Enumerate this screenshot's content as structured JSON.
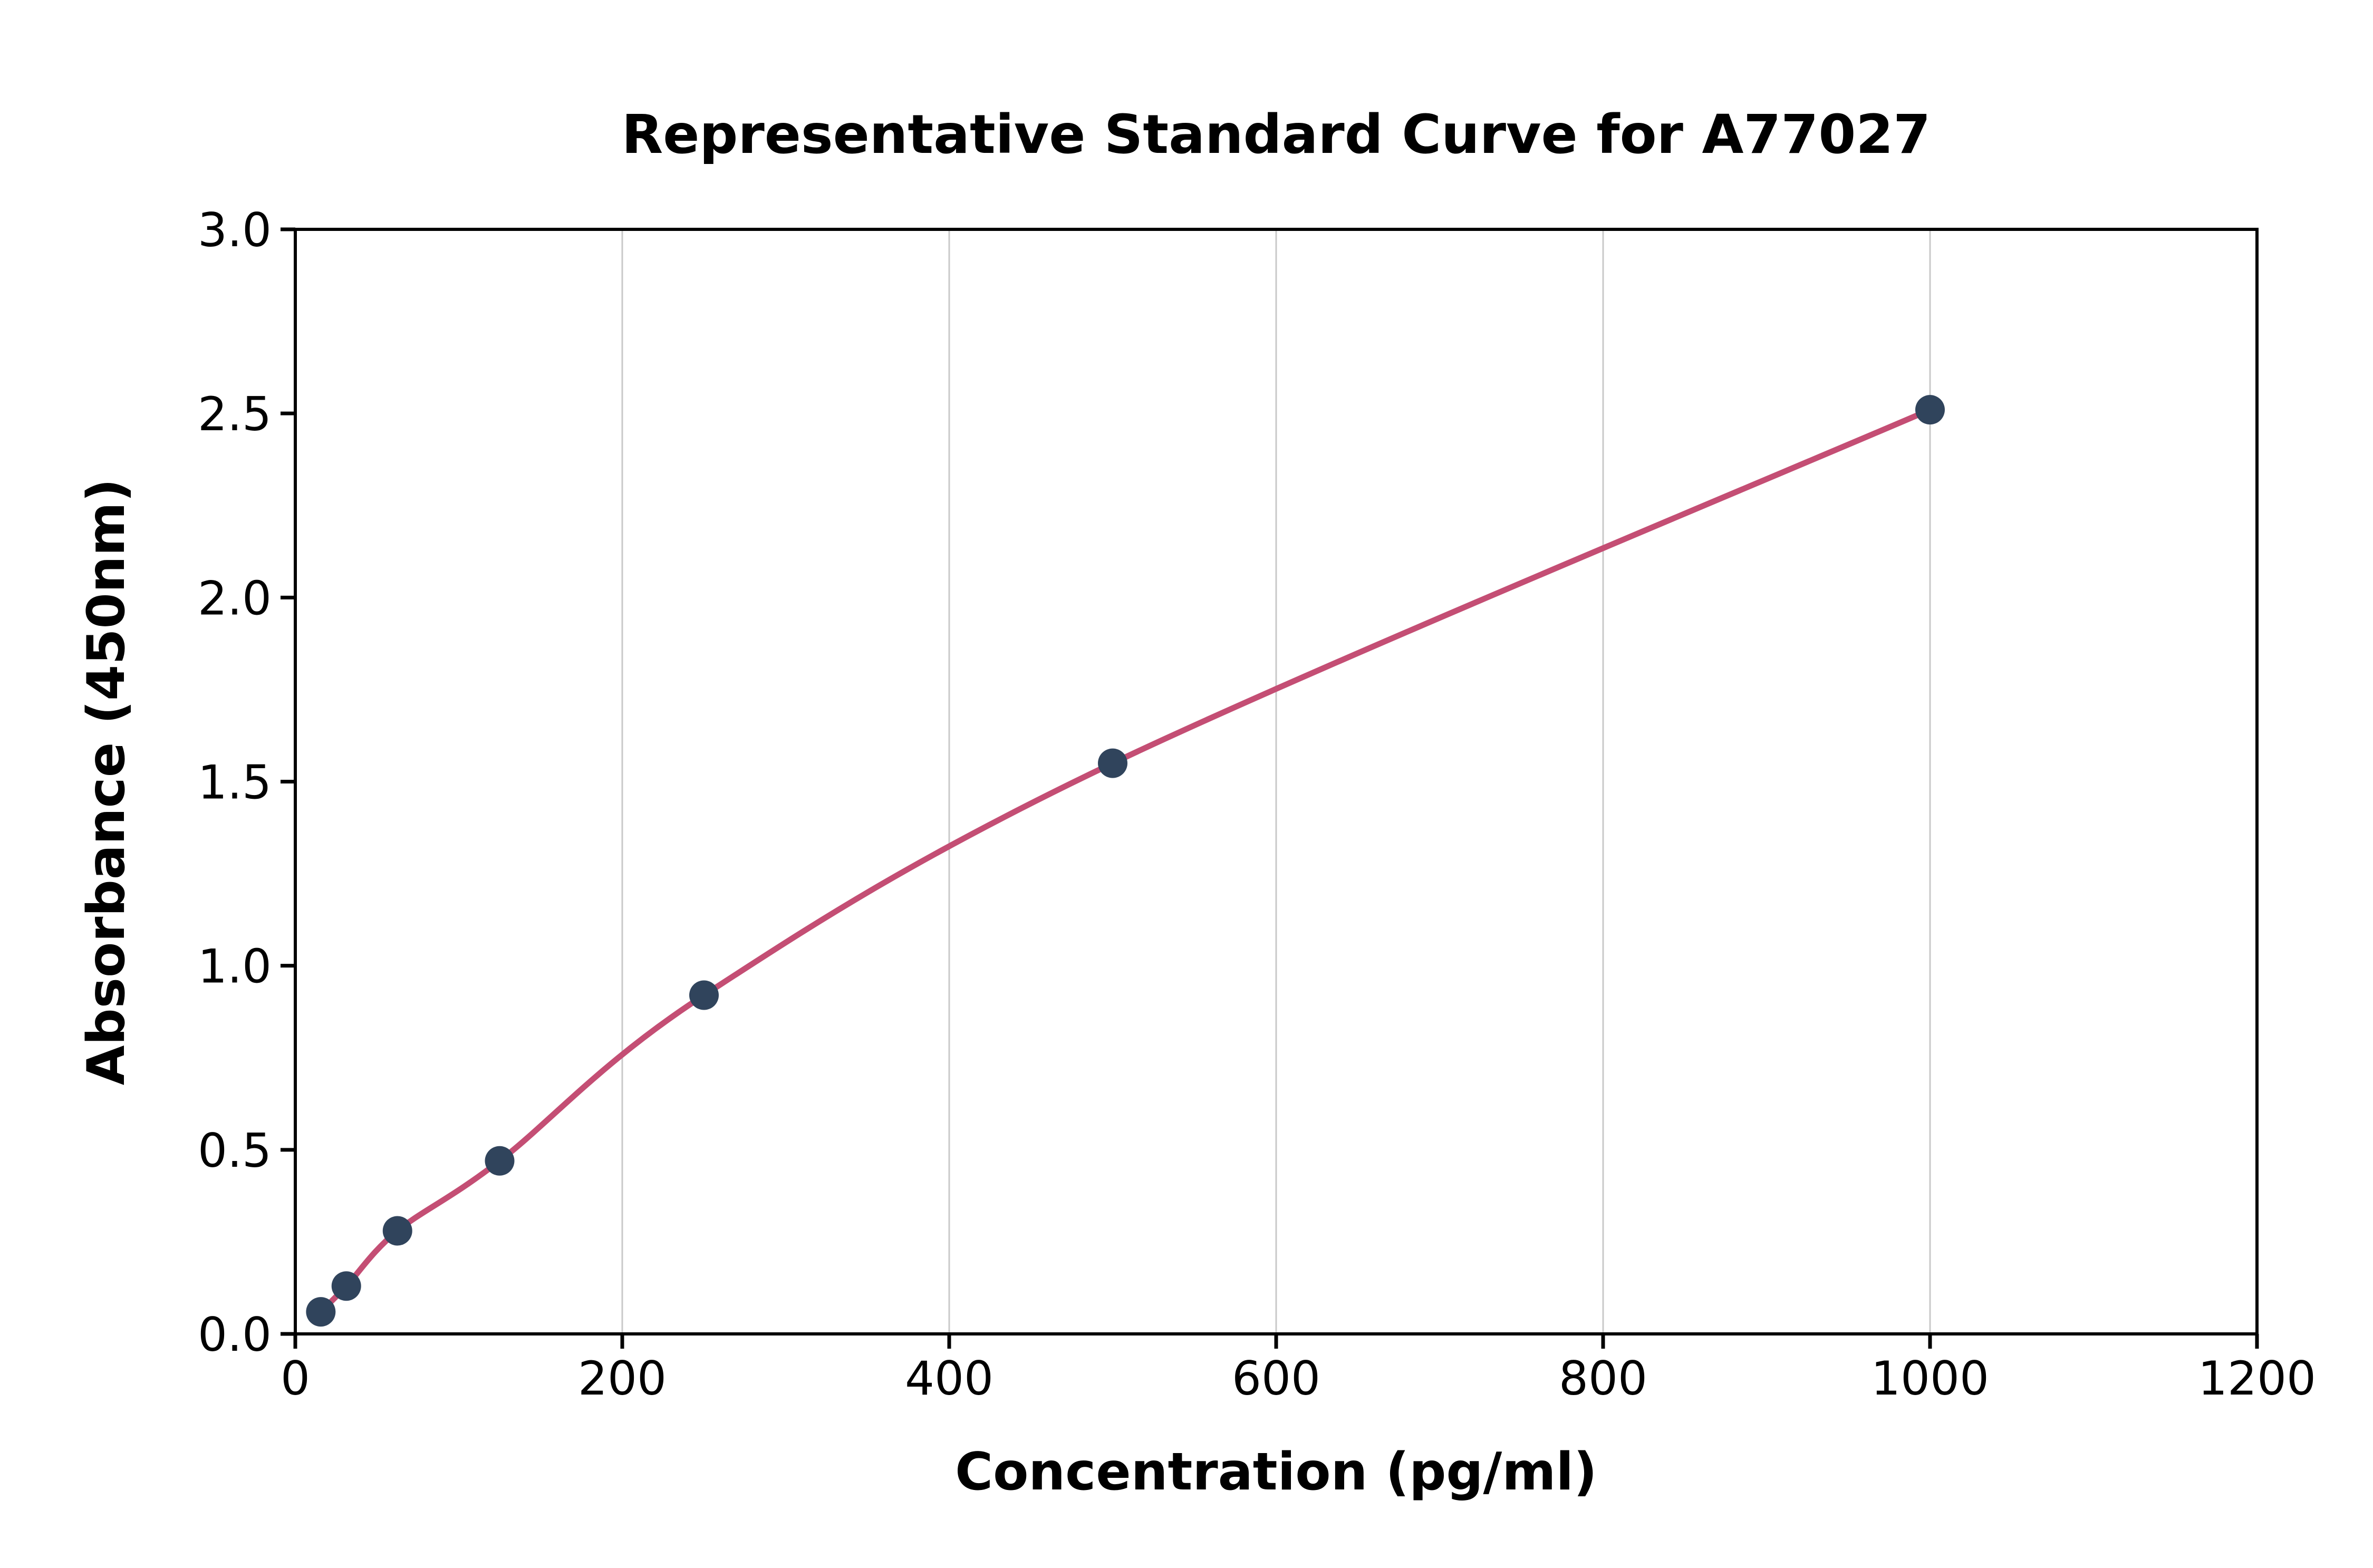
{
  "figure": {
    "background_color": "#ffffff"
  },
  "chart_data": {
    "type": "scatter",
    "title": "Representative Standard Curve for A77027",
    "xlabel": "Concentration (pg/ml)",
    "ylabel": "Absorbance (450nm)",
    "xlim": [
      0,
      1200
    ],
    "ylim": [
      0.0,
      3.0
    ],
    "x_ticks": [
      0,
      200,
      400,
      600,
      800,
      1000,
      1200
    ],
    "y_ticks": [
      0.0,
      0.5,
      1.0,
      1.5,
      2.0,
      2.5,
      3.0
    ],
    "grid": "vertical-only",
    "legend_position": "none",
    "colors": {
      "grid": "#c9c9c9",
      "axis": "#000000",
      "fit_line": "#c44e74",
      "points": "#30445c"
    },
    "series": [
      {
        "name": "fitted-standard-curve",
        "type": "line",
        "color": "#c44e74",
        "x": [
          15.6,
          31.2,
          62.5,
          125,
          250,
          500,
          1000
        ],
        "y": [
          0.06,
          0.13,
          0.28,
          0.47,
          0.92,
          1.55,
          2.51
        ]
      },
      {
        "name": "standard-data-points",
        "type": "scatter",
        "color": "#30445c",
        "x": [
          15.6,
          31.2,
          62.5,
          125,
          250,
          500,
          1000
        ],
        "y": [
          0.06,
          0.13,
          0.28,
          0.47,
          0.92,
          1.55,
          2.51
        ]
      }
    ]
  }
}
